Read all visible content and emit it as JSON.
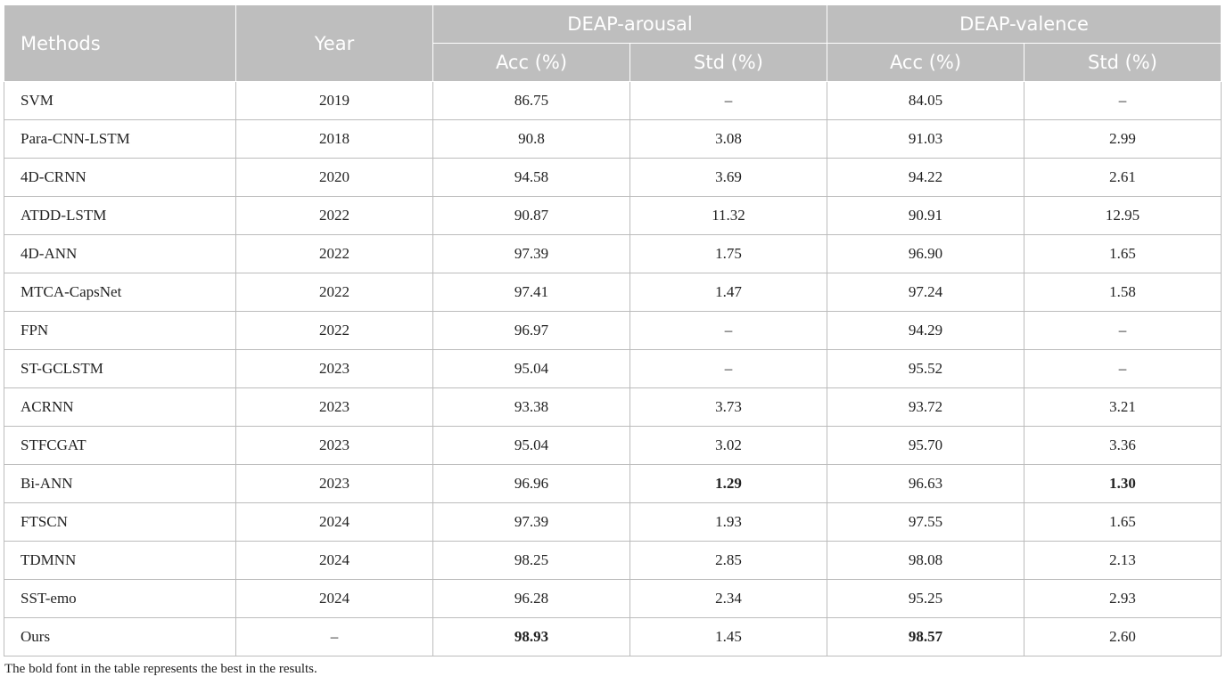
{
  "header": {
    "methods": "Methods",
    "year": "Year",
    "group1": "DEAP-arousal",
    "group2": "DEAP-valence",
    "acc": "Acc (%)",
    "std": "Std (%)"
  },
  "rows": [
    {
      "method": "SVM",
      "year": "2019",
      "aro_acc": "86.75",
      "aro_std": "–",
      "val_acc": "84.05",
      "val_std": "–"
    },
    {
      "method": "Para-CNN-LSTM",
      "year": "2018",
      "aro_acc": "90.8",
      "aro_std": "3.08",
      "val_acc": "91.03",
      "val_std": "2.99"
    },
    {
      "method": "4D-CRNN",
      "year": "2020",
      "aro_acc": "94.58",
      "aro_std": "3.69",
      "val_acc": "94.22",
      "val_std": "2.61"
    },
    {
      "method": "ATDD-LSTM",
      "year": "2022",
      "aro_acc": "90.87",
      "aro_std": "11.32",
      "val_acc": "90.91",
      "val_std": "12.95"
    },
    {
      "method": "4D-ANN",
      "year": "2022",
      "aro_acc": "97.39",
      "aro_std": "1.75",
      "val_acc": "96.90",
      "val_std": "1.65"
    },
    {
      "method": "MTCA-CapsNet",
      "year": "2022",
      "aro_acc": "97.41",
      "aro_std": "1.47",
      "val_acc": "97.24",
      "val_std": "1.58"
    },
    {
      "method": "FPN",
      "year": "2022",
      "aro_acc": "96.97",
      "aro_std": "–",
      "val_acc": "94.29",
      "val_std": "–"
    },
    {
      "method": "ST-GCLSTM",
      "year": "2023",
      "aro_acc": "95.04",
      "aro_std": "–",
      "val_acc": "95.52",
      "val_std": "–"
    },
    {
      "method": "ACRNN",
      "year": "2023",
      "aro_acc": "93.38",
      "aro_std": "3.73",
      "val_acc": "93.72",
      "val_std": "3.21"
    },
    {
      "method": "STFCGAT",
      "year": "2023",
      "aro_acc": "95.04",
      "aro_std": "3.02",
      "val_acc": "95.70",
      "val_std": "3.36"
    },
    {
      "method": "Bi-ANN",
      "year": "2023",
      "aro_acc": "96.96",
      "aro_std": "1.29",
      "val_acc": "96.63",
      "val_std": "1.30"
    },
    {
      "method": "FTSCN",
      "year": "2024",
      "aro_acc": "97.39",
      "aro_std": "1.93",
      "val_acc": "97.55",
      "val_std": "1.65"
    },
    {
      "method": "TDMNN",
      "year": "2024",
      "aro_acc": "98.25",
      "aro_std": "2.85",
      "val_acc": "98.08",
      "val_std": "2.13"
    },
    {
      "method": "SST-emo",
      "year": "2024",
      "aro_acc": "96.28",
      "aro_std": "2.34",
      "val_acc": "95.25",
      "val_std": "2.93"
    },
    {
      "method": "Ours",
      "year": "–",
      "aro_acc": "98.93",
      "aro_std": "1.45",
      "val_acc": "98.57",
      "val_std": "2.60"
    }
  ],
  "bold_cells": [
    {
      "row": 10,
      "col": "aro_std"
    },
    {
      "row": 10,
      "col": "val_std"
    },
    {
      "row": 14,
      "col": "aro_acc"
    },
    {
      "row": 14,
      "col": "val_acc"
    }
  ],
  "footnote": "The bold font in the table represents the best in the results.",
  "colors": {
    "header_bg": "#bebebe",
    "header_text": "#ffffff",
    "grid": "#bcbcbc"
  }
}
